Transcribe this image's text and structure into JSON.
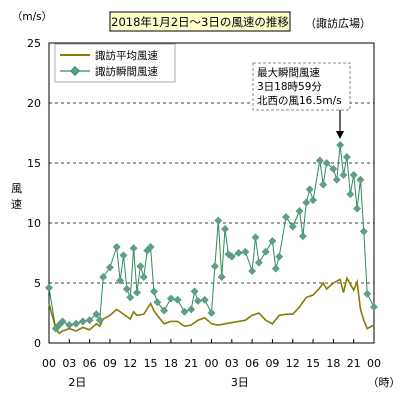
{
  "chart_data": {
    "type": "line",
    "title": "2018年1月2日～3日の風速の推移",
    "unit_label": "（m/s）",
    "station_label": "（諏訪広場）",
    "ylabel": "風速",
    "xlabel": "（時）",
    "ylim": [
      0,
      25
    ],
    "yticks": [
      "0",
      "5",
      "10",
      "15",
      "20",
      "25"
    ],
    "xlim": [
      0,
      48
    ],
    "xtick_labels": [
      "00",
      "03",
      "06",
      "09",
      "12",
      "15",
      "18",
      "21",
      "00",
      "03",
      "06",
      "09",
      "12",
      "15",
      "18",
      "21",
      "00"
    ],
    "day_labels": [
      {
        "hour": 3,
        "label": "2日"
      },
      {
        "hour": 27,
        "label": "3日"
      }
    ],
    "grid": "horizontal-dashed",
    "legend_position": "top-left",
    "annotation": {
      "lines": [
        "最大瞬間風速",
        "3日18時59分",
        "北西の風16.5m/s"
      ],
      "point": {
        "x": 42.98,
        "y": 16.5
      }
    },
    "colors": {
      "average": "#8a7a00",
      "gust": "#2e8b57",
      "marker": "#5f9e8f"
    },
    "series": [
      {
        "name": "諏訪平均風速",
        "x": [
          0,
          1,
          1.5,
          2,
          3,
          4,
          5,
          6,
          7,
          7.5,
          8,
          9,
          10,
          11,
          12,
          12.5,
          13,
          14,
          15,
          15.5,
          16,
          17,
          18,
          19,
          20,
          21,
          22,
          23,
          24,
          25,
          26,
          27,
          28,
          29,
          30,
          31,
          32,
          33,
          34,
          35,
          36,
          37,
          38,
          39,
          40,
          40.5,
          41,
          42,
          43,
          43.5,
          44,
          45,
          45.5,
          46,
          46.5,
          47,
          48
        ],
        "values": [
          3.3,
          1.2,
          0.8,
          1.0,
          1.2,
          1.0,
          1.3,
          1.1,
          1.6,
          1.4,
          2.0,
          2.3,
          2.8,
          2.4,
          2.0,
          2.6,
          2.3,
          2.4,
          3.3,
          2.7,
          2.3,
          1.6,
          1.8,
          1.8,
          1.4,
          1.5,
          1.9,
          2.1,
          1.6,
          1.5,
          1.6,
          1.7,
          1.8,
          1.9,
          2.3,
          2.5,
          1.9,
          1.6,
          2.3,
          2.4,
          2.4,
          3.0,
          3.8,
          4.0,
          4.6,
          5.0,
          4.5,
          5.0,
          5.3,
          4.2,
          5.4,
          4.4,
          5.1,
          2.8,
          1.9,
          1.2,
          1.5
        ]
      },
      {
        "name": "諏訪瞬間風速",
        "x": [
          0,
          1,
          1.5,
          2,
          3,
          4,
          5,
          6,
          7,
          7.5,
          8,
          9,
          10,
          10.5,
          11,
          11.5,
          12,
          12.5,
          13,
          13.5,
          14,
          14.5,
          15,
          15.5,
          16,
          17,
          18,
          19,
          20,
          21,
          21.5,
          22,
          23,
          24,
          24.5,
          25,
          25.5,
          26,
          26.5,
          27,
          28,
          29,
          30,
          30.5,
          31,
          32,
          33,
          33.5,
          34,
          35,
          36,
          37,
          37.5,
          38,
          38.5,
          39,
          40,
          40.5,
          41,
          42,
          42.5,
          43,
          43.5,
          44,
          44.5,
          45,
          45.5,
          46,
          46.5,
          47,
          48
        ],
        "values": [
          4.6,
          1.2,
          1.5,
          1.8,
          1.5,
          1.6,
          1.8,
          1.9,
          2.4,
          1.9,
          5.5,
          6.3,
          8.0,
          5.2,
          7.3,
          4.5,
          3.8,
          7.9,
          4.2,
          6.4,
          5.5,
          7.7,
          8.0,
          4.3,
          3.4,
          2.7,
          3.7,
          3.6,
          2.6,
          2.8,
          4.3,
          3.5,
          3.6,
          2.5,
          6.4,
          10.2,
          5.5,
          9.5,
          7.4,
          7.2,
          7.5,
          7.6,
          6.0,
          8.8,
          6.7,
          7.6,
          8.5,
          6.2,
          7.2,
          10.5,
          9.7,
          11.0,
          8.9,
          11.7,
          12.8,
          11.9,
          15.2,
          13.2,
          15.0,
          14.5,
          13.6,
          16.5,
          14.0,
          15.5,
          12.4,
          14.0,
          11.2,
          13.6,
          9.3,
          4.1,
          3.0
        ]
      }
    ]
  }
}
